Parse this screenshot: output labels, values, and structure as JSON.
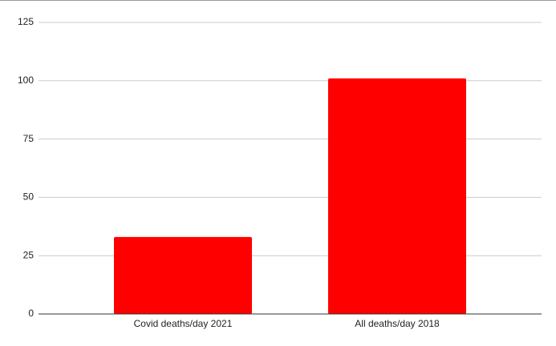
{
  "chart_data": {
    "type": "bar",
    "categories": [
      "Covid deaths/day 2021",
      "All deaths/day 2018"
    ],
    "values": [
      33,
      101
    ],
    "color": "#ff0000",
    "ylim": [
      0,
      125
    ],
    "yticks": [
      0,
      25,
      50,
      75,
      100,
      125
    ],
    "grid": true
  }
}
